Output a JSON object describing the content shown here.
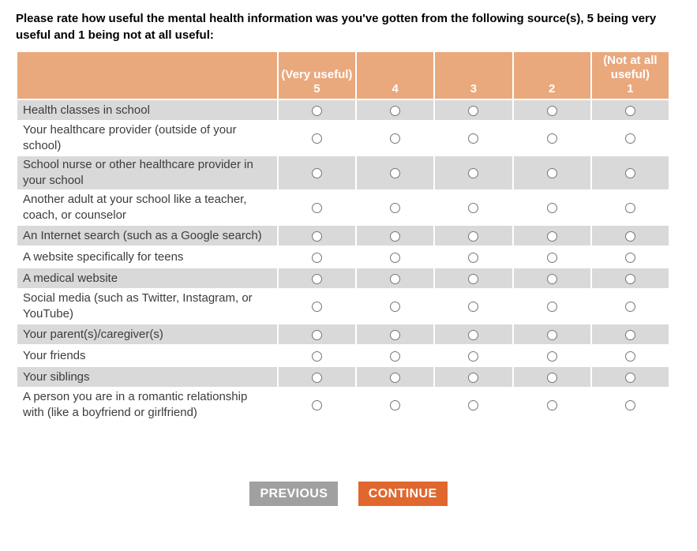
{
  "question": {
    "text": "Please rate how useful the mental health information was you've gotten from the following source(s), 5 being very useful and 1 being not at all useful:"
  },
  "table": {
    "columns": [
      {
        "label": "(Very useful)",
        "value": "5"
      },
      {
        "label": "",
        "value": "4"
      },
      {
        "label": "",
        "value": "3"
      },
      {
        "label": "",
        "value": "2"
      },
      {
        "label": "(Not at all useful)",
        "value": "1"
      }
    ],
    "rows": [
      {
        "label": "Health classes in school",
        "selected": null
      },
      {
        "label": "Your healthcare provider (outside of your school)",
        "selected": null
      },
      {
        "label": "School nurse or other healthcare provider in your school",
        "selected": null
      },
      {
        "label": "Another adult at your school like a teacher, coach, or counselor",
        "selected": null
      },
      {
        "label": "An Internet search (such as a Google search)",
        "selected": null
      },
      {
        "label": "A website specifically for teens",
        "selected": null
      },
      {
        "label": "A medical website",
        "selected": null
      },
      {
        "label": "Social media (such as Twitter, Instagram, or YouTube)",
        "selected": null
      },
      {
        "label": "Your parent(s)/caregiver(s)",
        "selected": null
      },
      {
        "label": "Your friends",
        "selected": null
      },
      {
        "label": "Your siblings",
        "selected": null
      },
      {
        "label": "A person you are in a romantic relationship with (like a boyfriend or girlfriend)",
        "selected": null
      }
    ]
  },
  "buttons": {
    "previous_label": "PREVIOUS",
    "continue_label": "CONTINUE"
  },
  "colors": {
    "header_bg": "#eaa87d",
    "header_text": "#ffffff",
    "row_alt_bg": "#d9d9d9",
    "row_bg": "#ffffff",
    "body_text": "#3c3c3c",
    "previous_bg": "#a0a0a0",
    "continue_bg": "#e0672e"
  }
}
